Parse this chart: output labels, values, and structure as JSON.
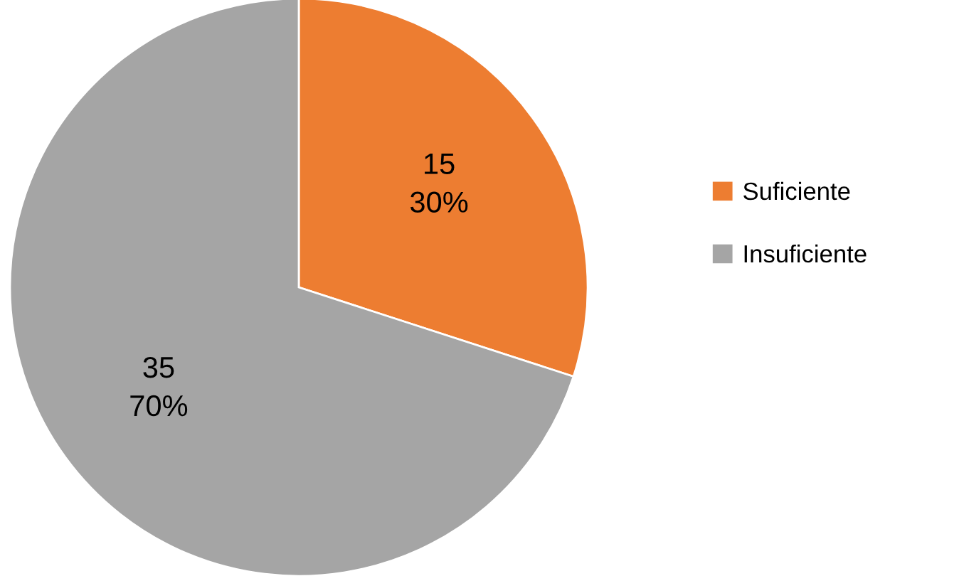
{
  "chart_data": {
    "type": "pie",
    "categories": [
      "Suficiente",
      "Insuficiente"
    ],
    "values": [
      15,
      35
    ],
    "colors": [
      "#ed7d31",
      "#a5a5a5"
    ],
    "value_labels": [
      "15\n30%",
      "35\n70%"
    ],
    "legend": "right"
  }
}
